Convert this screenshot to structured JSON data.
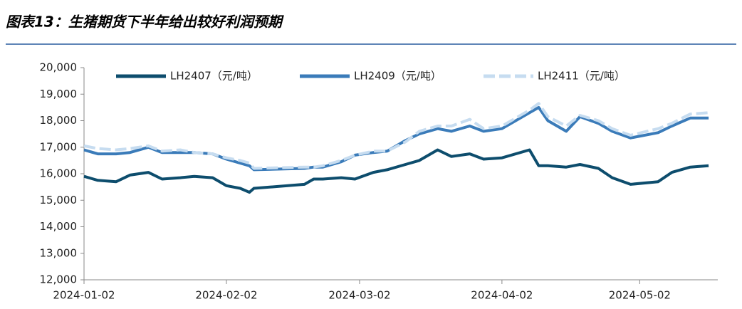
{
  "chart_data": {
    "type": "line",
    "title": "图表13：生猪期货下半年给出较好利润预期",
    "x": [
      "2024-01-02",
      "2024-01-05",
      "2024-01-09",
      "2024-01-12",
      "2024-01-16",
      "2024-01-19",
      "2024-01-23",
      "2024-01-26",
      "2024-01-30",
      "2024-02-02",
      "2024-02-05",
      "2024-02-07",
      "2024-02-08",
      "2024-02-19",
      "2024-02-21",
      "2024-02-23",
      "2024-02-27",
      "2024-03-01",
      "2024-03-05",
      "2024-03-08",
      "2024-03-12",
      "2024-03-15",
      "2024-03-19",
      "2024-03-22",
      "2024-03-26",
      "2024-03-29",
      "2024-04-02",
      "2024-04-08",
      "2024-04-10",
      "2024-04-12",
      "2024-04-16",
      "2024-04-19",
      "2024-04-23",
      "2024-04-26",
      "2024-04-30",
      "2024-05-06",
      "2024-05-09",
      "2024-05-13",
      "2024-05-17"
    ],
    "series": [
      {
        "name": "LH2407（元/吨）",
        "color": "#0d4d6d",
        "values": [
          15900,
          15750,
          15700,
          15950,
          16050,
          15800,
          15850,
          15900,
          15850,
          15550,
          15450,
          15300,
          15450,
          15600,
          15800,
          15800,
          15850,
          15800,
          16050,
          16150,
          16350,
          16500,
          16900,
          16650,
          16750,
          16550,
          16600,
          16900,
          16300,
          16300,
          16250,
          16350,
          16200,
          15850,
          15600,
          15700,
          16050,
          16250,
          16300
        ]
      },
      {
        "name": "LH2409（元/吨）",
        "color": "#3a7bb9",
        "values": [
          16900,
          16750,
          16750,
          16800,
          17000,
          16800,
          16800,
          16800,
          16750,
          16550,
          16400,
          16300,
          16150,
          16200,
          16250,
          16250,
          16450,
          16700,
          16800,
          16850,
          17250,
          17500,
          17700,
          17600,
          17800,
          17600,
          17700,
          18300,
          18500,
          18000,
          17600,
          18150,
          17900,
          17600,
          17350,
          17550,
          17800,
          18100,
          18100
        ]
      },
      {
        "name": "LH2411（元/吨）",
        "color": "#c6dcf0",
        "dashed": true,
        "values": [
          17050,
          16950,
          16900,
          16950,
          17050,
          16850,
          16900,
          16800,
          16750,
          16600,
          16500,
          16400,
          16200,
          16250,
          16250,
          16300,
          16500,
          16700,
          16850,
          16850,
          17200,
          17600,
          17800,
          17800,
          18050,
          17700,
          17800,
          18400,
          18650,
          18150,
          17800,
          18200,
          18000,
          17700,
          17450,
          17700,
          17900,
          18250,
          18300
        ]
      }
    ],
    "xlim": [
      "2024-01-02",
      "2024-05-19"
    ],
    "xticks": [
      "2024-01-02",
      "2024-02-02",
      "2024-03-02",
      "2024-04-02",
      "2024-05-02"
    ],
    "ylim": [
      12000,
      20000
    ],
    "yticks": [
      {
        "value": 12000,
        "label": "12,000"
      },
      {
        "value": 13000,
        "label": "13,000"
      },
      {
        "value": 14000,
        "label": "14,000"
      },
      {
        "value": 15000,
        "label": "15,000"
      },
      {
        "value": 16000,
        "label": "16,000"
      },
      {
        "value": 17000,
        "label": "17,000"
      },
      {
        "value": 18000,
        "label": "18,000"
      },
      {
        "value": 19000,
        "label": "19,000"
      },
      {
        "value": 20000,
        "label": "20,000"
      }
    ],
    "legend": "top"
  }
}
